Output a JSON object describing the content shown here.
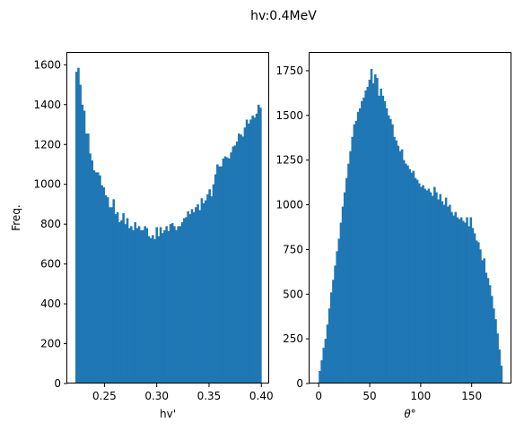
{
  "figure": {
    "suptitle": "hv:0.4MeV"
  },
  "chart_data": [
    {
      "type": "bar",
      "subtype": "histogram",
      "xlabel": "hv'",
      "ylabel": "Freq.",
      "xlim": [
        0.2145,
        0.4075
      ],
      "ylim": [
        0,
        1660
      ],
      "xticks": [
        0.25,
        0.3,
        0.35,
        0.4
      ],
      "xtick_labels": [
        "0.25",
        "0.30",
        "0.35",
        "0.40"
      ],
      "yticks": [
        0,
        200,
        400,
        600,
        800,
        1000,
        1200,
        1400,
        1600
      ],
      "ytick_labels": [
        "0",
        "200",
        "400",
        "600",
        "800",
        "1000",
        "1200",
        "1400",
        "1600"
      ],
      "bar_color": "#1f77b4",
      "bin_range": [
        0.2222,
        0.4
      ],
      "values": [
        1565,
        1585,
        1500,
        1400,
        1370,
        1255,
        1255,
        1155,
        1120,
        1070,
        1060,
        1060,
        1045,
        995,
        985,
        945,
        935,
        885,
        885,
        925,
        850,
        860,
        810,
        820,
        855,
        800,
        830,
        780,
        790,
        770,
        810,
        780,
        790,
        770,
        770,
        790,
        780,
        740,
        730,
        745,
        725,
        785,
        740,
        785,
        755,
        770,
        790,
        765,
        800,
        805,
        790,
        770,
        790,
        790,
        810,
        830,
        835,
        865,
        850,
        875,
        860,
        885,
        900,
        870,
        930,
        905,
        920,
        950,
        975,
        940,
        1000,
        1050,
        1100,
        1090,
        1090,
        1130,
        1140,
        1135,
        1130,
        1160,
        1190,
        1195,
        1215,
        1255,
        1250,
        1240,
        1285,
        1325,
        1305,
        1325,
        1345,
        1335,
        1355,
        1400,
        1385
      ]
    },
    {
      "type": "bar",
      "subtype": "histogram",
      "xlabel": "θ°",
      "ylabel": "",
      "xlim": [
        -9,
        189
      ],
      "ylim": [
        0,
        1850
      ],
      "xticks": [
        0,
        50,
        100,
        150
      ],
      "xtick_labels": [
        "0",
        "50",
        "100",
        "150"
      ],
      "yticks": [
        0,
        250,
        500,
        750,
        1000,
        1250,
        1500,
        1750
      ],
      "ytick_labels": [
        "0",
        "250",
        "500",
        "750",
        "1000",
        "1250",
        "1500",
        "1750"
      ],
      "bar_color": "#1f77b4",
      "bin_range": [
        0,
        180
      ],
      "values": [
        70,
        130,
        200,
        250,
        330,
        420,
        510,
        580,
        660,
        740,
        810,
        900,
        990,
        1070,
        1150,
        1230,
        1300,
        1380,
        1450,
        1470,
        1520,
        1540,
        1580,
        1600,
        1640,
        1660,
        1700,
        1760,
        1680,
        1730,
        1710,
        1610,
        1650,
        1610,
        1580,
        1540,
        1500,
        1480,
        1450,
        1380,
        1360,
        1330,
        1300,
        1310,
        1250,
        1230,
        1220,
        1200,
        1180,
        1190,
        1150,
        1140,
        1120,
        1100,
        1110,
        1090,
        1080,
        1090,
        1070,
        1050,
        1100,
        1070,
        1030,
        1060,
        1020,
        1000,
        1040,
        990,
        1000,
        960,
        940,
        960,
        930,
        920,
        930,
        910,
        900,
        930,
        880,
        930,
        870,
        840,
        800,
        790,
        750,
        690,
        700,
        620,
        590,
        550,
        490,
        420,
        360,
        280,
        190,
        100
      ]
    }
  ]
}
